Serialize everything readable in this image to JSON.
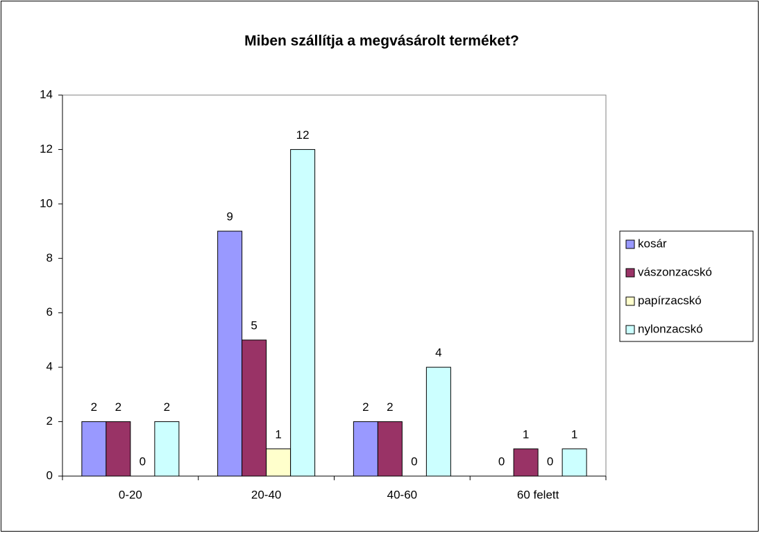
{
  "chart_data": {
    "type": "bar",
    "title": "Miben szállítja a megvásárolt terméket?",
    "categories": [
      "0-20",
      "20-40",
      "40-60",
      "60 felett"
    ],
    "series": [
      {
        "name": "kosár",
        "color": "#9999ff",
        "values": [
          2,
          9,
          2,
          0
        ]
      },
      {
        "name": "vászonzacskó",
        "color": "#993366",
        "values": [
          2,
          5,
          2,
          1
        ]
      },
      {
        "name": "papírzacskó",
        "color": "#ffffcc",
        "values": [
          0,
          1,
          0,
          0
        ]
      },
      {
        "name": "nylonzacskó",
        "color": "#ccffff",
        "values": [
          2,
          12,
          4,
          1
        ]
      }
    ],
    "ylim": [
      0,
      14
    ],
    "yticks": [
      0,
      2,
      4,
      6,
      8,
      10,
      12,
      14
    ],
    "grid": false,
    "legend": "right"
  }
}
